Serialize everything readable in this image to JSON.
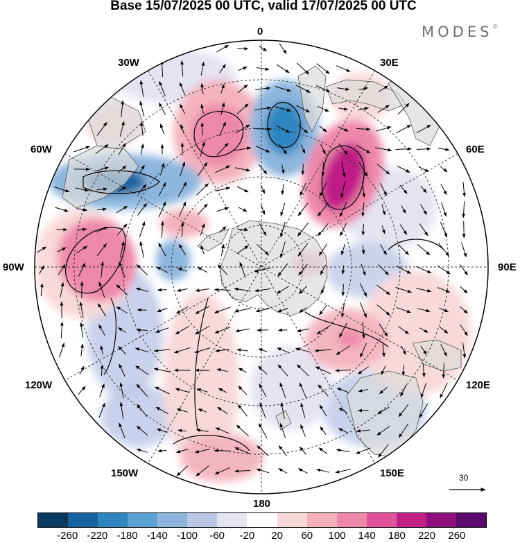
{
  "title": "Base 15/07/2025 00 UTC, valid 17/07/2025 00 UTC",
  "brand": "MODES",
  "brand_mark": "©",
  "lon_labels": {
    "top": "0",
    "top_right": "30E",
    "right_upper": "60E",
    "right": "90E",
    "right_lower": "120E",
    "bottom_right": "150E",
    "bottom": "180",
    "bottom_left": "150W",
    "left_lower": "120W",
    "left": "90W",
    "left_upper": "60W",
    "top_left": "30W"
  },
  "reference_vector": "30",
  "colorbar": {
    "colors": [
      "#0b3a5e",
      "#1763a0",
      "#2e86c1",
      "#5aa2d2",
      "#8db6dd",
      "#bcc7e6",
      "#e3e3f1",
      "#ffffff",
      "#f8d7d9",
      "#f4b2bf",
      "#ee88aa",
      "#e05399",
      "#c01f87",
      "#8f0f7c",
      "#5b0a6b"
    ],
    "ticks": [
      "-260",
      "-220",
      "-180",
      "-140",
      "-100",
      "-60",
      "-20",
      "20",
      "60",
      "100",
      "140",
      "180",
      "220",
      "260"
    ]
  }
}
